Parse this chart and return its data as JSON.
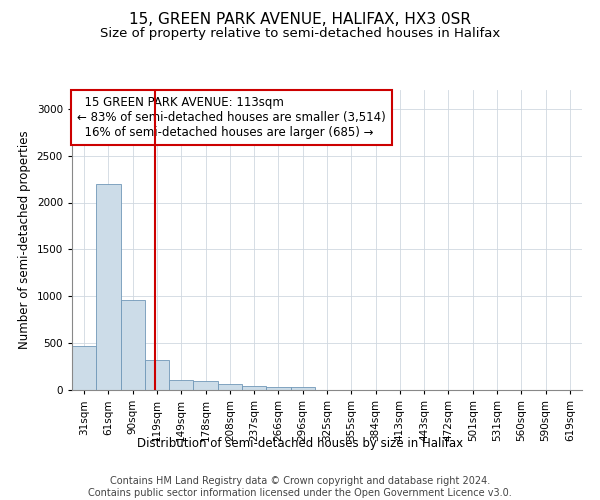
{
  "title_line1": "15, GREEN PARK AVENUE, HALIFAX, HX3 0SR",
  "title_line2": "Size of property relative to semi-detached houses in Halifax",
  "xlabel": "Distribution of semi-detached houses by size in Halifax",
  "ylabel": "Number of semi-detached properties",
  "footer_line1": "Contains HM Land Registry data © Crown copyright and database right 2024.",
  "footer_line2": "Contains public sector information licensed under the Open Government Licence v3.0.",
  "categories": [
    "31sqm",
    "61sqm",
    "90sqm",
    "119sqm",
    "149sqm",
    "178sqm",
    "208sqm",
    "237sqm",
    "266sqm",
    "296sqm",
    "325sqm",
    "355sqm",
    "384sqm",
    "413sqm",
    "443sqm",
    "472sqm",
    "501sqm",
    "531sqm",
    "560sqm",
    "590sqm",
    "619sqm"
  ],
  "values": [
    470,
    2200,
    960,
    320,
    105,
    95,
    60,
    38,
    32,
    28,
    0,
    0,
    0,
    0,
    0,
    0,
    0,
    0,
    0,
    0,
    0
  ],
  "bar_color": "#ccdce8",
  "bar_edge_color": "#7098b8",
  "grid_color": "#d0d8e0",
  "annotation_box_color": "#cc0000",
  "vline_color": "#cc0000",
  "property_label": "15 GREEN PARK AVENUE: 113sqm",
  "pct_smaller": 83,
  "count_smaller": 3514,
  "pct_larger": 16,
  "count_larger": 685,
  "vline_x_index": 2.93,
  "ylim": [
    0,
    3200
  ],
  "yticks": [
    0,
    500,
    1000,
    1500,
    2000,
    2500,
    3000
  ],
  "background_color": "#ffffff",
  "title1_fontsize": 11,
  "title2_fontsize": 9.5,
  "annotation_fontsize": 8.5,
  "axis_label_fontsize": 8.5,
  "tick_fontsize": 7.5,
  "footer_fontsize": 7
}
